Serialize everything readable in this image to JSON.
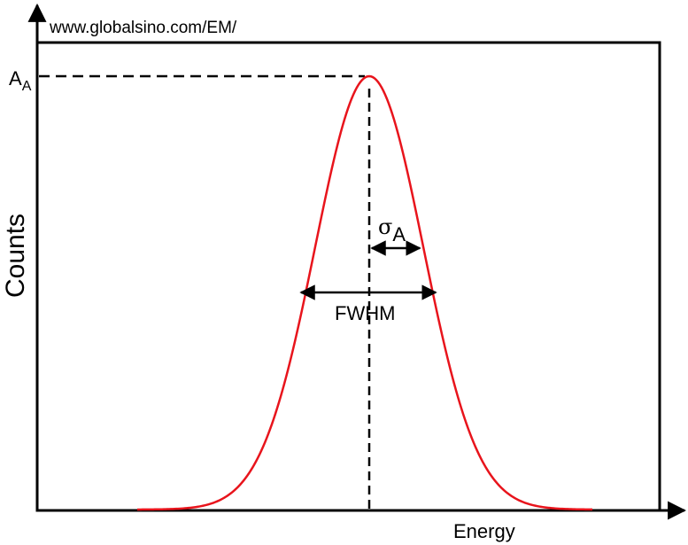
{
  "watermark": "www.globalsino.com/EM/",
  "axes": {
    "x_label": "Energy",
    "y_label": "Counts"
  },
  "peak": {
    "amplitude_symbol": "A",
    "amplitude_subscript": "A"
  },
  "annotations": {
    "sigma_symbol": "σ",
    "sigma_subscript": "A",
    "fwhm_label": "FWHM"
  },
  "colors": {
    "curve": "#e8141c",
    "axes": "#000000",
    "background": "#ffffff"
  }
}
